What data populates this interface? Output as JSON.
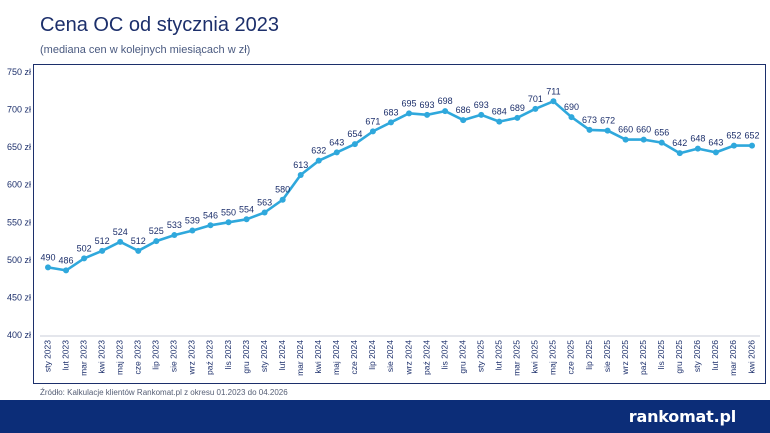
{
  "header": {
    "title": "Cena OC od stycznia 2023",
    "subtitle": "(mediana cen w kolejnych miesiącach w zł)"
  },
  "source_note": "Źródło: Kalkulacje klientów Rankomat.pl z okresu 01.2023 do 04.2026",
  "brand": {
    "logo_text": "rankomat.pl",
    "footer_color": "#0c2d78"
  },
  "colors": {
    "line": "#2fa8dc",
    "text": "#1c2f6b"
  },
  "chart_data": {
    "type": "line",
    "title": "Cena OC od stycznia 2023",
    "subtitle": "(mediana cen w kolejnych miesiącach w zł)",
    "ylim": [
      400,
      750
    ],
    "yticks": [
      400,
      450,
      500,
      550,
      600,
      650,
      700,
      750
    ],
    "ytick_suffix": " zł",
    "grid": false,
    "categories": [
      "sty 2023",
      "lut 2023",
      "mar 2023",
      "kwi 2023",
      "maj 2023",
      "cze 2023",
      "lip 2023",
      "sie 2023",
      "wrz 2023",
      "paź 2023",
      "lis 2023",
      "gru 2023",
      "sty 2024",
      "lut 2024",
      "mar 2024",
      "kwi 2024",
      "maj 2024",
      "cze 2024",
      "lip 2024",
      "sie 2024",
      "wrz 2024",
      "paź 2024",
      "lis 2024",
      "gru 2024",
      "sty 2025",
      "lut 2025",
      "mar 2025",
      "kwi 2025",
      "maj 2025",
      "cze 2025",
      "lip 2025",
      "sie 2025",
      "wrz 2025",
      "paź 2025",
      "lis 2025",
      "gru 2025",
      "sty 2026",
      "lut 2026",
      "mar 2026",
      "kwi 2026"
    ],
    "values": [
      490,
      486,
      502,
      512,
      524,
      512,
      525,
      533,
      539,
      546,
      550,
      554,
      563,
      580,
      613,
      632,
      643,
      654,
      671,
      683,
      695,
      693,
      698,
      686,
      693,
      684,
      689,
      701,
      711,
      690,
      673,
      672,
      660,
      660,
      656,
      642,
      648,
      643,
      652,
      652
    ]
  }
}
